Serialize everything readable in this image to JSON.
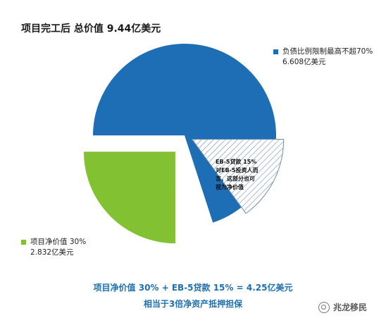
{
  "title": "项目完工后  总价值  9.44亿美元",
  "chart_data": {
    "type": "pie",
    "colors": {
      "debt": "#1d6eb5",
      "equity": "#82c232",
      "eb5": "#6e8daa"
    },
    "slices": [
      {
        "key": "debt",
        "value": 70
      },
      {
        "key": "eb5",
        "value": 15
      },
      {
        "key": "equity",
        "value": 30
      }
    ],
    "legend": {
      "debt": {
        "line1": "负债比例限制最高不超70%",
        "line2": "6.608亿美元"
      },
      "equity": {
        "line1": "项目净价值  30%",
        "line2": "2.832亿美元"
      }
    },
    "eb5_label": {
      "line1": "EB-5贷款  15%",
      "line2": "对EB-5投资人而",
      "line3": "言，这部分也可",
      "line4": "视为净价值"
    }
  },
  "summary": {
    "line1": "项目净价值  30% + EB-5贷款  15% = 4.25亿美元",
    "line2": "相当于3倍净资产抵押担保"
  },
  "watermark": {
    "text": "兆龙移民",
    "icon": "wechat-icon"
  }
}
